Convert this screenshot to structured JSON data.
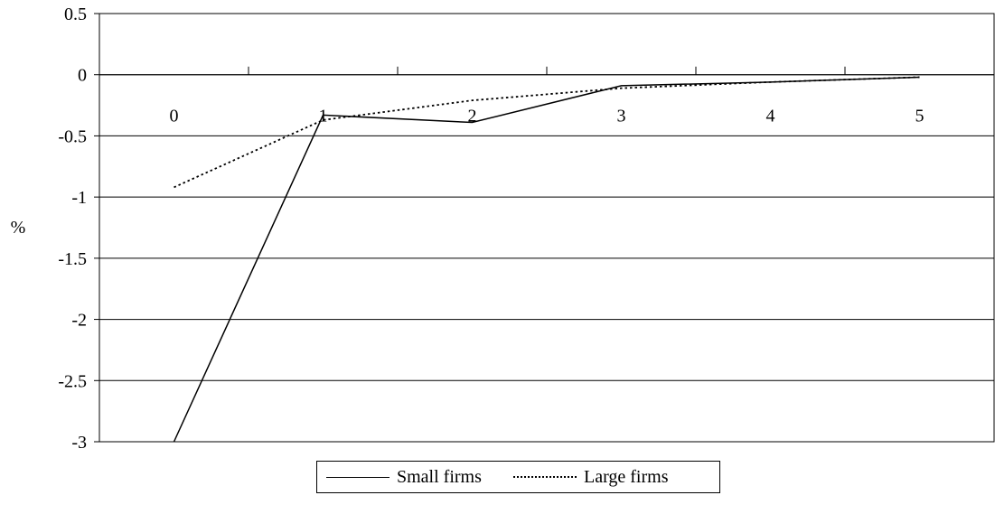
{
  "chart_data": {
    "type": "line",
    "categories": [
      "0",
      "1",
      "2",
      "3",
      "4",
      "5"
    ],
    "series": [
      {
        "name": "Small firms",
        "values": [
          -3.0,
          -0.33,
          -0.39,
          -0.09,
          -0.06,
          -0.02
        ],
        "style": "solid",
        "color": "#000000"
      },
      {
        "name": "Large firms",
        "values": [
          -0.92,
          -0.37,
          -0.21,
          -0.11,
          -0.06,
          -0.02
        ],
        "style": "dotted",
        "color": "#000000"
      }
    ],
    "ylabel": "%",
    "ylim": [
      -3,
      0.5
    ],
    "yticks": [
      0.5,
      0,
      -0.5,
      -1,
      -1.5,
      -2,
      -2.5,
      -3
    ],
    "ytick_labels": [
      "0.5",
      "0",
      "-0.5",
      "-1",
      "-1.5",
      "-2",
      "-2.5",
      "-3"
    ],
    "grid": true,
    "legend_position": "bottom"
  }
}
